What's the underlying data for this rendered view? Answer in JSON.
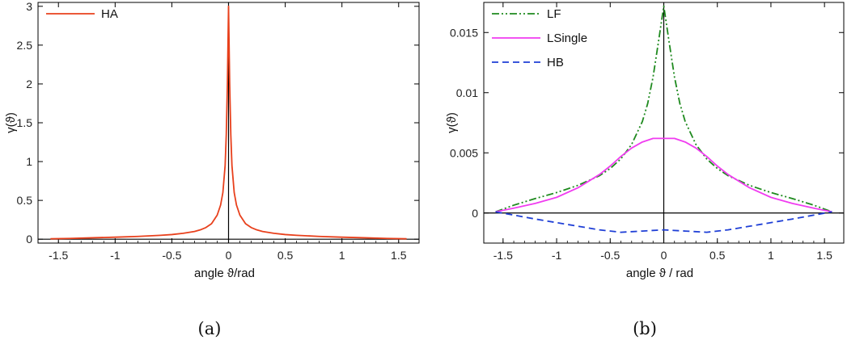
{
  "chart_data": [
    {
      "type": "line",
      "panel_caption": "(a)",
      "xlabel": "angle ϑ/rad",
      "ylabel": "γ(ϑ)",
      "xlim": [
        -1.68,
        1.68
      ],
      "ylim": [
        -0.05,
        3.05
      ],
      "x_ticks": [
        -1.5,
        -1,
        -0.5,
        0,
        0.5,
        1,
        1.5
      ],
      "x_tick_labels": [
        "-1.5",
        "-1",
        "-0.5",
        "0",
        "0.5",
        "1",
        "1.5"
      ],
      "y_ticks": [
        0,
        0.5,
        1,
        1.5,
        2,
        2.5,
        3
      ],
      "y_tick_labels": [
        "0",
        "0.5",
        "1",
        "1.5",
        "2",
        "2.5",
        "3"
      ],
      "grid": false,
      "legend_position": "top-left",
      "series": [
        {
          "name": "HA",
          "color": "#e8401c",
          "dash": "solid",
          "x": [
            -1.57,
            -1.4,
            -1.2,
            -1.0,
            -0.8,
            -0.6,
            -0.5,
            -0.4,
            -0.3,
            -0.25,
            -0.2,
            -0.15,
            -0.1,
            -0.07,
            -0.05,
            -0.03,
            -0.02,
            -0.01,
            0,
            0.01,
            0.02,
            0.03,
            0.05,
            0.07,
            0.1,
            0.15,
            0.2,
            0.25,
            0.3,
            0.4,
            0.5,
            0.6,
            0.8,
            1.0,
            1.2,
            1.4,
            1.57
          ],
          "y": [
            0.005,
            0.01,
            0.018,
            0.026,
            0.036,
            0.05,
            0.06,
            0.076,
            0.1,
            0.12,
            0.15,
            0.2,
            0.31,
            0.44,
            0.6,
            0.95,
            1.35,
            2.0,
            3.0,
            2.0,
            1.35,
            0.95,
            0.6,
            0.44,
            0.31,
            0.2,
            0.15,
            0.12,
            0.1,
            0.076,
            0.06,
            0.05,
            0.036,
            0.026,
            0.018,
            0.01,
            0.005
          ]
        }
      ]
    },
    {
      "type": "line",
      "panel_caption": "(b)",
      "xlabel": "angle ϑ / rad",
      "ylabel": "γ(ϑ)",
      "xlim": [
        -1.68,
        1.68
      ],
      "ylim": [
        -0.0025,
        0.0175
      ],
      "x_ticks": [
        -1.5,
        -1,
        -0.5,
        0,
        0.5,
        1,
        1.5
      ],
      "x_tick_labels": [
        "-1.5",
        "-1",
        "-0.5",
        "0",
        "0.5",
        "1",
        "1.5"
      ],
      "y_ticks": [
        0,
        0.005,
        0.01,
        0.015
      ],
      "y_tick_labels": [
        "0",
        "0.005",
        "0.01",
        "0.015"
      ],
      "grid": false,
      "legend_position": "top-left",
      "series": [
        {
          "name": "LF",
          "color": "#1f8a1f",
          "dash": "dash-dot-dot",
          "x": [
            -1.57,
            -1.4,
            -1.2,
            -1.0,
            -0.8,
            -0.6,
            -0.5,
            -0.4,
            -0.3,
            -0.2,
            -0.15,
            -0.1,
            -0.05,
            0,
            0.05,
            0.1,
            0.15,
            0.2,
            0.3,
            0.4,
            0.5,
            0.6,
            0.8,
            1.0,
            1.2,
            1.4,
            1.57
          ],
          "y": [
            0.0001,
            0.00065,
            0.0012,
            0.0017,
            0.0023,
            0.0031,
            0.0037,
            0.0045,
            0.0057,
            0.0076,
            0.0091,
            0.0113,
            0.0142,
            0.0172,
            0.0142,
            0.0113,
            0.0091,
            0.0076,
            0.0057,
            0.0045,
            0.0037,
            0.0031,
            0.0023,
            0.0017,
            0.0012,
            0.00065,
            0.0001
          ]
        },
        {
          "name": "LSingle",
          "color": "#f03cf0",
          "dash": "solid",
          "x": [
            -1.57,
            -1.4,
            -1.2,
            -1.0,
            -0.8,
            -0.6,
            -0.5,
            -0.4,
            -0.3,
            -0.2,
            -0.1,
            0,
            0.1,
            0.2,
            0.3,
            0.4,
            0.5,
            0.6,
            0.8,
            1.0,
            1.2,
            1.4,
            1.57
          ],
          "y": [
            0.0001,
            0.0004,
            0.0008,
            0.0013,
            0.0021,
            0.0032,
            0.0039,
            0.0047,
            0.0054,
            0.0059,
            0.0062,
            0.0062,
            0.0062,
            0.0059,
            0.0054,
            0.0047,
            0.0039,
            0.0032,
            0.0021,
            0.0013,
            0.0008,
            0.0004,
            0.0001
          ]
        },
        {
          "name": "HB",
          "color": "#1f3fd6",
          "dash": "dashed",
          "x": [
            -1.57,
            -1.2,
            -0.8,
            -0.6,
            -0.4,
            -0.2,
            0,
            0.2,
            0.4,
            0.6,
            0.8,
            1.2,
            1.57
          ],
          "y": [
            0.0001,
            -0.0005,
            -0.0011,
            -0.0014,
            -0.0016,
            -0.0015,
            -0.0014,
            -0.0015,
            -0.0016,
            -0.0014,
            -0.0011,
            -0.0005,
            0.0001
          ]
        }
      ]
    }
  ]
}
